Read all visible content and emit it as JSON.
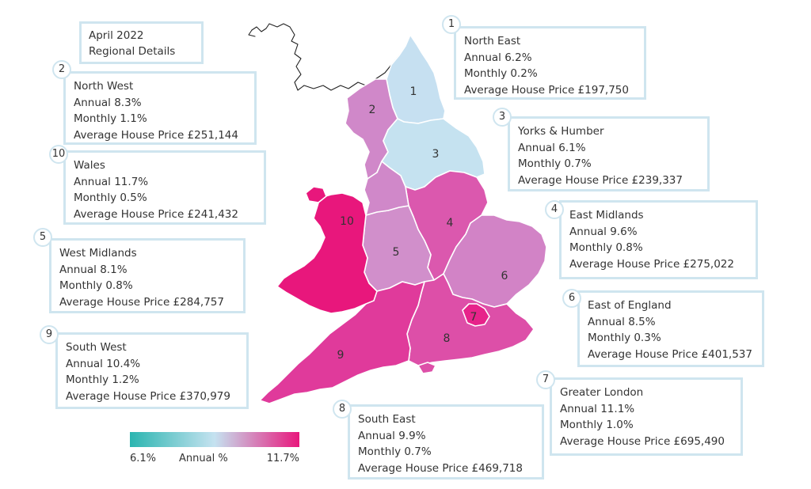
{
  "title": {
    "line1": "April 2022",
    "line2": "Regional Details"
  },
  "legend": {
    "min_label": "6.1%",
    "label": "Annual %",
    "max_label": "11.7%",
    "min_value": 6.1,
    "max_value": 11.7,
    "color_low": "#2bb5b0",
    "color_mid": "#c5e2f0",
    "color_high": "#e8177c"
  },
  "colors": {
    "box_border": "#cfe5ef",
    "coast": "#222222"
  },
  "regions": [
    {
      "id": "1",
      "name": "North East",
      "annual": "Annual 6.2%",
      "monthly": "Monthly 0.2%",
      "price": "Average House Price £197,750",
      "annual_value": 6.2,
      "fill": "#c6e0f1"
    },
    {
      "id": "2",
      "name": "North West",
      "annual": "Annual 8.3%",
      "monthly": "Monthly 1.1%",
      "price": "Average House Price £251,144",
      "annual_value": 8.3,
      "fill": "#d088c9"
    },
    {
      "id": "3",
      "name": "Yorks & Humber",
      "annual": "Annual 6.1%",
      "monthly": "Monthly 0.7%",
      "price": "Average House Price £239,337",
      "annual_value": 6.1,
      "fill": "#c5e2f0"
    },
    {
      "id": "4",
      "name": "East Midlands",
      "annual": "Annual 9.6%",
      "monthly": "Monthly 0.8%",
      "price": "Average House Price £275,022",
      "annual_value": 9.6,
      "fill": "#db58ae"
    },
    {
      "id": "5",
      "name": "West Midlands",
      "annual": "Annual 8.1%",
      "monthly": "Monthly 0.8%",
      "price": "Average House Price £284,757",
      "annual_value": 8.1,
      "fill": "#d18fcb"
    },
    {
      "id": "6",
      "name": "East of England",
      "annual": "Annual 8.5%",
      "monthly": "Monthly 0.3%",
      "price": "Average House Price £401,537",
      "annual_value": 8.5,
      "fill": "#d283c6"
    },
    {
      "id": "7",
      "name": "Greater London",
      "annual": "Annual 11.1%",
      "monthly": "Monthly 1.0%",
      "price": "Average House Price £695,490",
      "annual_value": 11.1,
      "fill": "#e7238a"
    },
    {
      "id": "8",
      "name": "South East",
      "annual": "Annual 9.9%",
      "monthly": "Monthly 0.7%",
      "price": "Average House Price £469,718",
      "annual_value": 9.9,
      "fill": "#dd4fa8"
    },
    {
      "id": "9",
      "name": "South West",
      "annual": "Annual 10.4%",
      "monthly": "Monthly 1.2%",
      "price": "Average House Price £370,979",
      "annual_value": 10.4,
      "fill": "#e03a9b"
    },
    {
      "id": "10",
      "name": "Wales",
      "annual": "Annual 11.7%",
      "monthly": "Monthly 0.5%",
      "price": "Average House Price £241,432",
      "annual_value": 11.7,
      "fill": "#e8177c"
    }
  ]
}
